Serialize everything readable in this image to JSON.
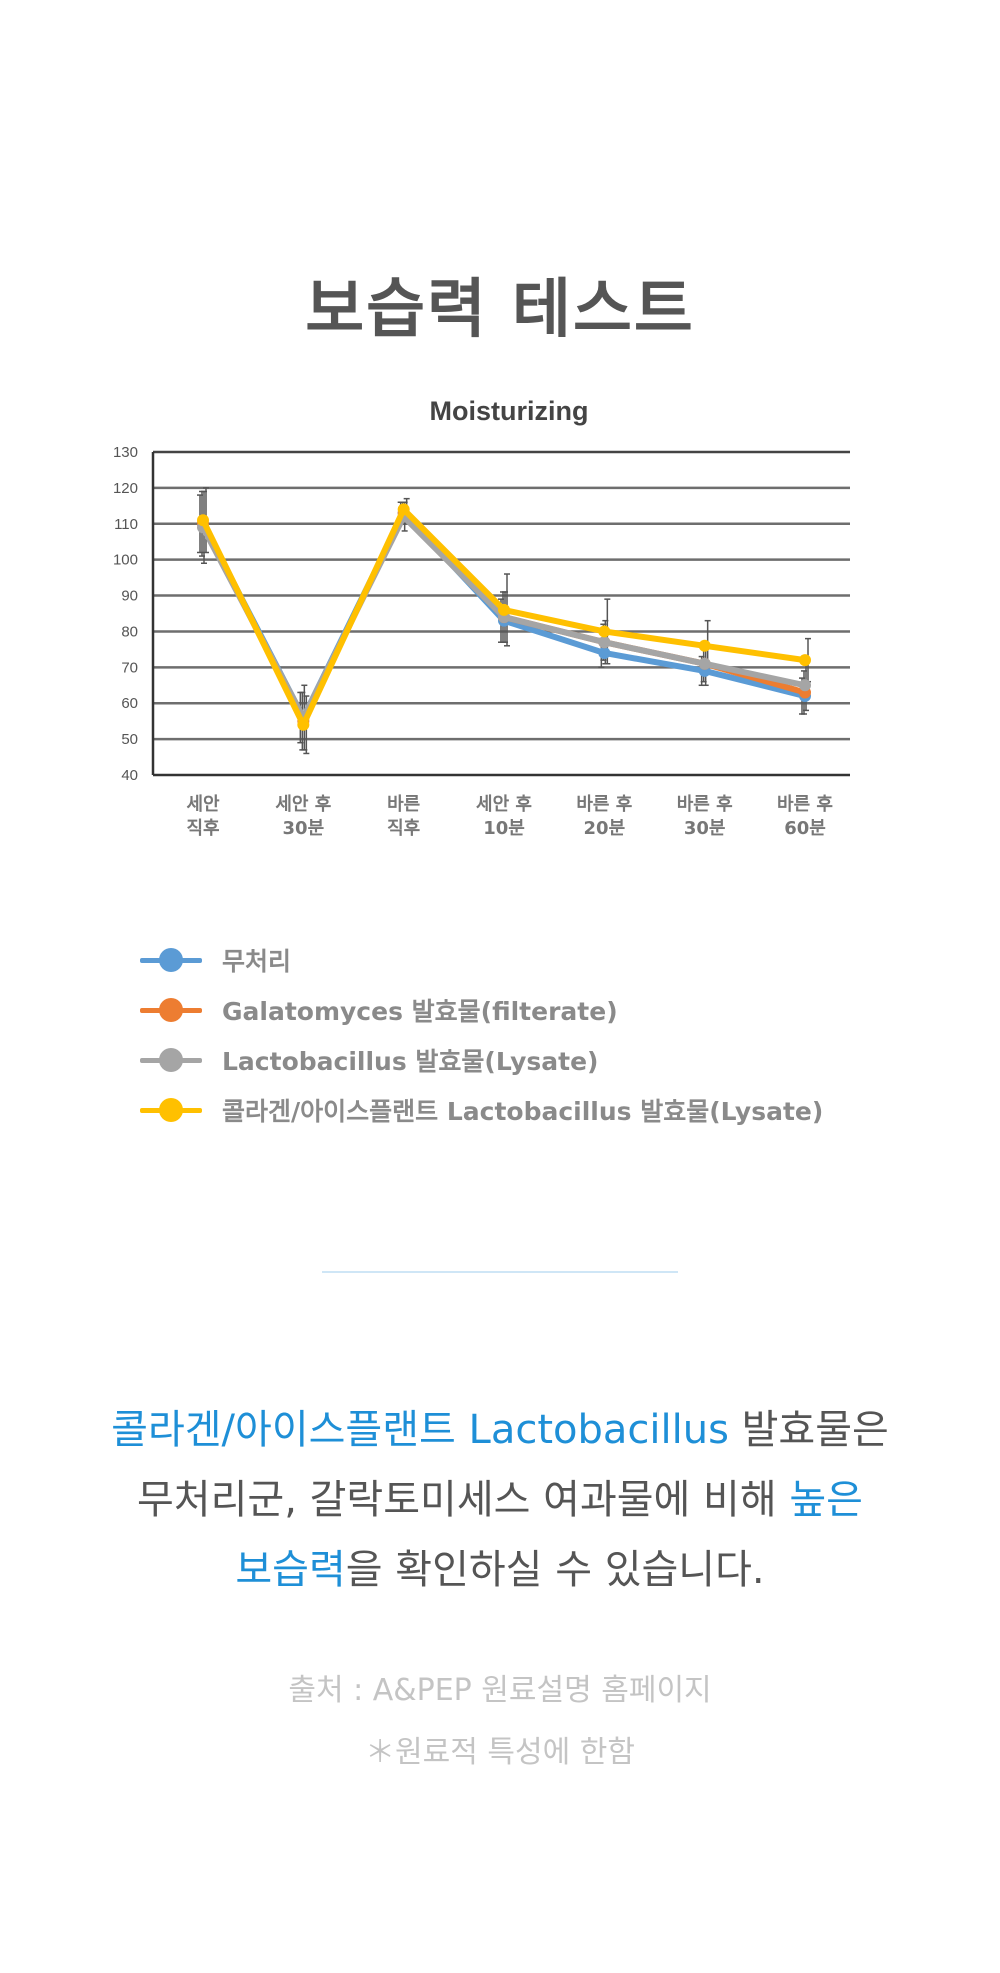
{
  "page": {
    "title": "보습력 테스트"
  },
  "chart_data": {
    "type": "line",
    "title": "Moisturizing",
    "xlabel": "",
    "ylabel": "",
    "ylim": [
      40,
      130
    ],
    "yticks": [
      40,
      50,
      60,
      70,
      80,
      90,
      100,
      110,
      120,
      130
    ],
    "grid": true,
    "legend_position": "bottom",
    "categories": [
      [
        "세안",
        "직후"
      ],
      [
        "세안 후",
        "30분"
      ],
      [
        "바른",
        "직후"
      ],
      [
        "세안 후",
        "10분"
      ],
      [
        "바른 후",
        "20분"
      ],
      [
        "바른 후",
        "30분"
      ],
      [
        "바른 후",
        "60분"
      ]
    ],
    "series": [
      {
        "name": "무처리",
        "color": "#5b9bd5",
        "values": [
          110,
          56,
          113,
          83,
          74,
          69,
          62
        ],
        "errors": [
          8,
          7,
          3,
          6,
          4,
          4,
          5
        ]
      },
      {
        "name": "Galatomyces 발효물(filterate)",
        "color": "#ed7d31",
        "values": [
          110,
          55,
          113,
          84,
          77,
          71,
          63
        ],
        "errors": [
          9,
          8,
          3,
          7,
          5,
          5,
          6
        ]
      },
      {
        "name": "Lactobacillus 발효물(Lysate)",
        "color": "#a5a5a5",
        "values": [
          109,
          56,
          112,
          84,
          77,
          71,
          65
        ],
        "errors": [
          10,
          9,
          4,
          7,
          6,
          6,
          7
        ]
      },
      {
        "name": "콜라겐/아이스플랜트 Lactobacillus 발효물(Lysate)",
        "color": "#ffc000",
        "values": [
          111,
          54,
          114,
          86,
          80,
          76,
          72
        ],
        "errors": [
          9,
          8,
          3,
          10,
          9,
          7,
          6
        ]
      }
    ]
  },
  "body": {
    "line1_highlight": "콜라겐/아이스플랜트 Lactobacillus",
    "line1_rest": " 발효물은",
    "line2_plain": "무처리군, 갈락토미세스 여과물에 비해 ",
    "line2_highlight": "높은",
    "line3_highlight": "보습력",
    "line3_rest": "을 확인하실 수 있습니다.",
    "highlight_color": "#1e8fd7"
  },
  "footer": {
    "source": "출처 : A&PEP 원료설명 홈페이지",
    "note": "＊원료적 특성에 한함"
  }
}
